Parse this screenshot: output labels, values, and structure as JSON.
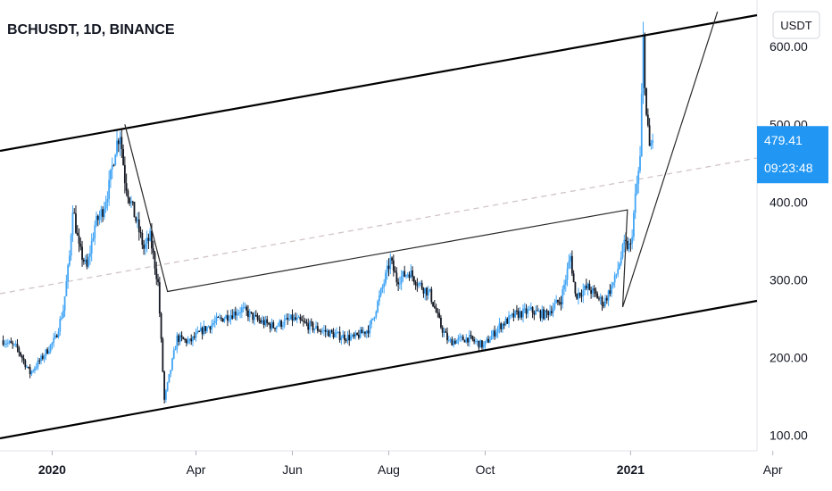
{
  "header": {
    "title": "BCHUSDT, 1D, BINANCE"
  },
  "currency_button": {
    "label": "USDT"
  },
  "price_tag": {
    "value": "479.41",
    "countdown": "09:23:48",
    "color": "#2196f3"
  },
  "colors": {
    "up": "#42a5f5",
    "down": "#131722",
    "trendline": "#000000",
    "pattern": "#2a2a2a",
    "mean_line": "#d1c4c4"
  },
  "chart_data": {
    "type": "candlestick",
    "symbol": "BCHUSDT",
    "interval": "1D",
    "exchange": "BINANCE",
    "y_ticks": [
      "100.00",
      "200.00",
      "300.00",
      "400.00",
      "500.00",
      "600.00"
    ],
    "ylim": [
      80,
      660
    ],
    "x_ticks": [
      {
        "label": "2020",
        "date": "2020-01-01",
        "bold": true
      },
      {
        "label": "Apr",
        "date": "2020-04-01",
        "bold": false
      },
      {
        "label": "Jun",
        "date": "2020-06-01",
        "bold": false
      },
      {
        "label": "Aug",
        "date": "2020-08-01",
        "bold": false
      },
      {
        "label": "Oct",
        "date": "2020-10-01",
        "bold": false
      },
      {
        "label": "2021",
        "date": "2021-01-01",
        "bold": true
      },
      {
        "label": "Apr",
        "date": "2021-04-01",
        "bold": false
      }
    ],
    "xlim": [
      "2019-11-29",
      "2021-03-22"
    ],
    "last_price": 479.41,
    "price_anchors": [
      [
        "2019-12-01",
        222
      ],
      [
        "2019-12-10",
        212
      ],
      [
        "2019-12-18",
        180
      ],
      [
        "2019-12-25",
        198
      ],
      [
        "2020-01-03",
        224
      ],
      [
        "2020-01-08",
        262
      ],
      [
        "2020-01-12",
        330
      ],
      [
        "2020-01-14",
        395
      ],
      [
        "2020-01-18",
        340
      ],
      [
        "2020-01-23",
        315
      ],
      [
        "2020-01-28",
        370
      ],
      [
        "2020-02-02",
        390
      ],
      [
        "2020-02-06",
        420
      ],
      [
        "2020-02-10",
        470
      ],
      [
        "2020-02-13",
        490
      ],
      [
        "2020-02-16",
        430
      ],
      [
        "2020-02-19",
        405
      ],
      [
        "2020-02-24",
        370
      ],
      [
        "2020-02-28",
        340
      ],
      [
        "2020-03-03",
        355
      ],
      [
        "2020-03-08",
        295
      ],
      [
        "2020-03-12",
        145
      ],
      [
        "2020-03-16",
        185
      ],
      [
        "2020-03-20",
        225
      ],
      [
        "2020-03-28",
        220
      ],
      [
        "2020-04-05",
        235
      ],
      [
        "2020-04-15",
        248
      ],
      [
        "2020-04-30",
        262
      ],
      [
        "2020-05-10",
        248
      ],
      [
        "2020-05-20",
        240
      ],
      [
        "2020-06-01",
        250
      ],
      [
        "2020-06-15",
        238
      ],
      [
        "2020-06-30",
        228
      ],
      [
        "2020-07-10",
        225
      ],
      [
        "2020-07-20",
        238
      ],
      [
        "2020-07-28",
        290
      ],
      [
        "2020-08-02",
        325
      ],
      [
        "2020-08-06",
        300
      ],
      [
        "2020-08-14",
        310
      ],
      [
        "2020-08-20",
        295
      ],
      [
        "2020-08-27",
        282
      ],
      [
        "2020-09-03",
        240
      ],
      [
        "2020-09-08",
        220
      ],
      [
        "2020-09-20",
        225
      ],
      [
        "2020-09-30",
        215
      ],
      [
        "2020-10-10",
        240
      ],
      [
        "2020-10-20",
        255
      ],
      [
        "2020-10-30",
        260
      ],
      [
        "2020-11-08",
        255
      ],
      [
        "2020-11-18",
        275
      ],
      [
        "2020-11-24",
        330
      ],
      [
        "2020-11-27",
        280
      ],
      [
        "2020-12-05",
        290
      ],
      [
        "2020-12-15",
        270
      ],
      [
        "2020-12-22",
        300
      ],
      [
        "2020-12-28",
        345
      ],
      [
        "2021-01-01",
        342
      ],
      [
        "2021-01-04",
        405
      ],
      [
        "2021-01-07",
        455
      ],
      [
        "2021-01-09",
        610
      ],
      [
        "2021-01-11",
        510
      ],
      [
        "2021-01-13",
        470
      ],
      [
        "2021-01-15",
        479.41
      ]
    ]
  }
}
